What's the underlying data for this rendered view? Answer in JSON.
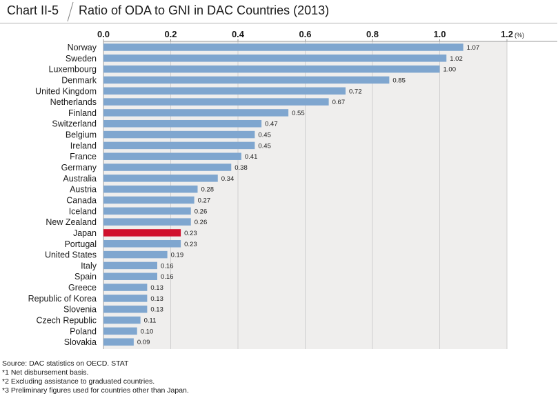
{
  "header": {
    "chart_id": "Chart II-5",
    "title": "Ratio of ODA to GNI in DAC Countries (2013)"
  },
  "chart_data": {
    "type": "bar",
    "orientation": "horizontal",
    "title": "Ratio of ODA to GNI in DAC Countries (2013)",
    "unit_label": "(%)",
    "xlim": [
      0,
      1.2
    ],
    "x_ticks": [
      "0.0",
      "0.2",
      "0.4",
      "0.6",
      "0.8",
      "1.0",
      "1.2"
    ],
    "x_tick_values": [
      0,
      0.2,
      0.4,
      0.6,
      0.8,
      1.0,
      1.2
    ],
    "grid": true,
    "bar_color": "#7fa6cf",
    "highlight_color": "#d0102c",
    "plot_background": "#efeeed",
    "highlight_category": "Japan",
    "categories": [
      "Norway",
      "Sweden",
      "Luxembourg",
      "Denmark",
      "United Kingdom",
      "Netherlands",
      "Finland",
      "Switzerland",
      "Belgium",
      "Ireland",
      "France",
      "Germany",
      "Australia",
      "Austria",
      "Canada",
      "Iceland",
      "New Zealand",
      "Japan",
      "Portugal",
      "United States",
      "Italy",
      "Spain",
      "Greece",
      "Republic of Korea",
      "Slovenia",
      "Czech Republic",
      "Poland",
      "Slovakia"
    ],
    "values": [
      1.07,
      1.02,
      1.0,
      0.85,
      0.72,
      0.67,
      0.55,
      0.47,
      0.45,
      0.45,
      0.41,
      0.38,
      0.34,
      0.28,
      0.27,
      0.26,
      0.26,
      0.23,
      0.23,
      0.19,
      0.16,
      0.16,
      0.13,
      0.13,
      0.13,
      0.11,
      0.1,
      0.09
    ],
    "value_labels": [
      "1.07",
      "1.02",
      "1.00",
      "0.85",
      "0.72",
      "0.67",
      "0.55",
      "0.47",
      "0.45",
      "0.45",
      "0.41",
      "0.38",
      "0.34",
      "0.28",
      "0.27",
      "0.26",
      "0.26",
      "0.23",
      "0.23",
      "0.19",
      "0.16",
      "0.16",
      "0.13",
      "0.13",
      "0.13",
      "0.11",
      "0.10",
      "0.09"
    ]
  },
  "footnotes": {
    "source": "Source: DAC statistics on OECD. STAT",
    "note1": "*1  Net disbursement basis.",
    "note2": "*2  Excluding assistance to graduated countries.",
    "note3": "*3  Preliminary figures used for countries other than Japan."
  }
}
